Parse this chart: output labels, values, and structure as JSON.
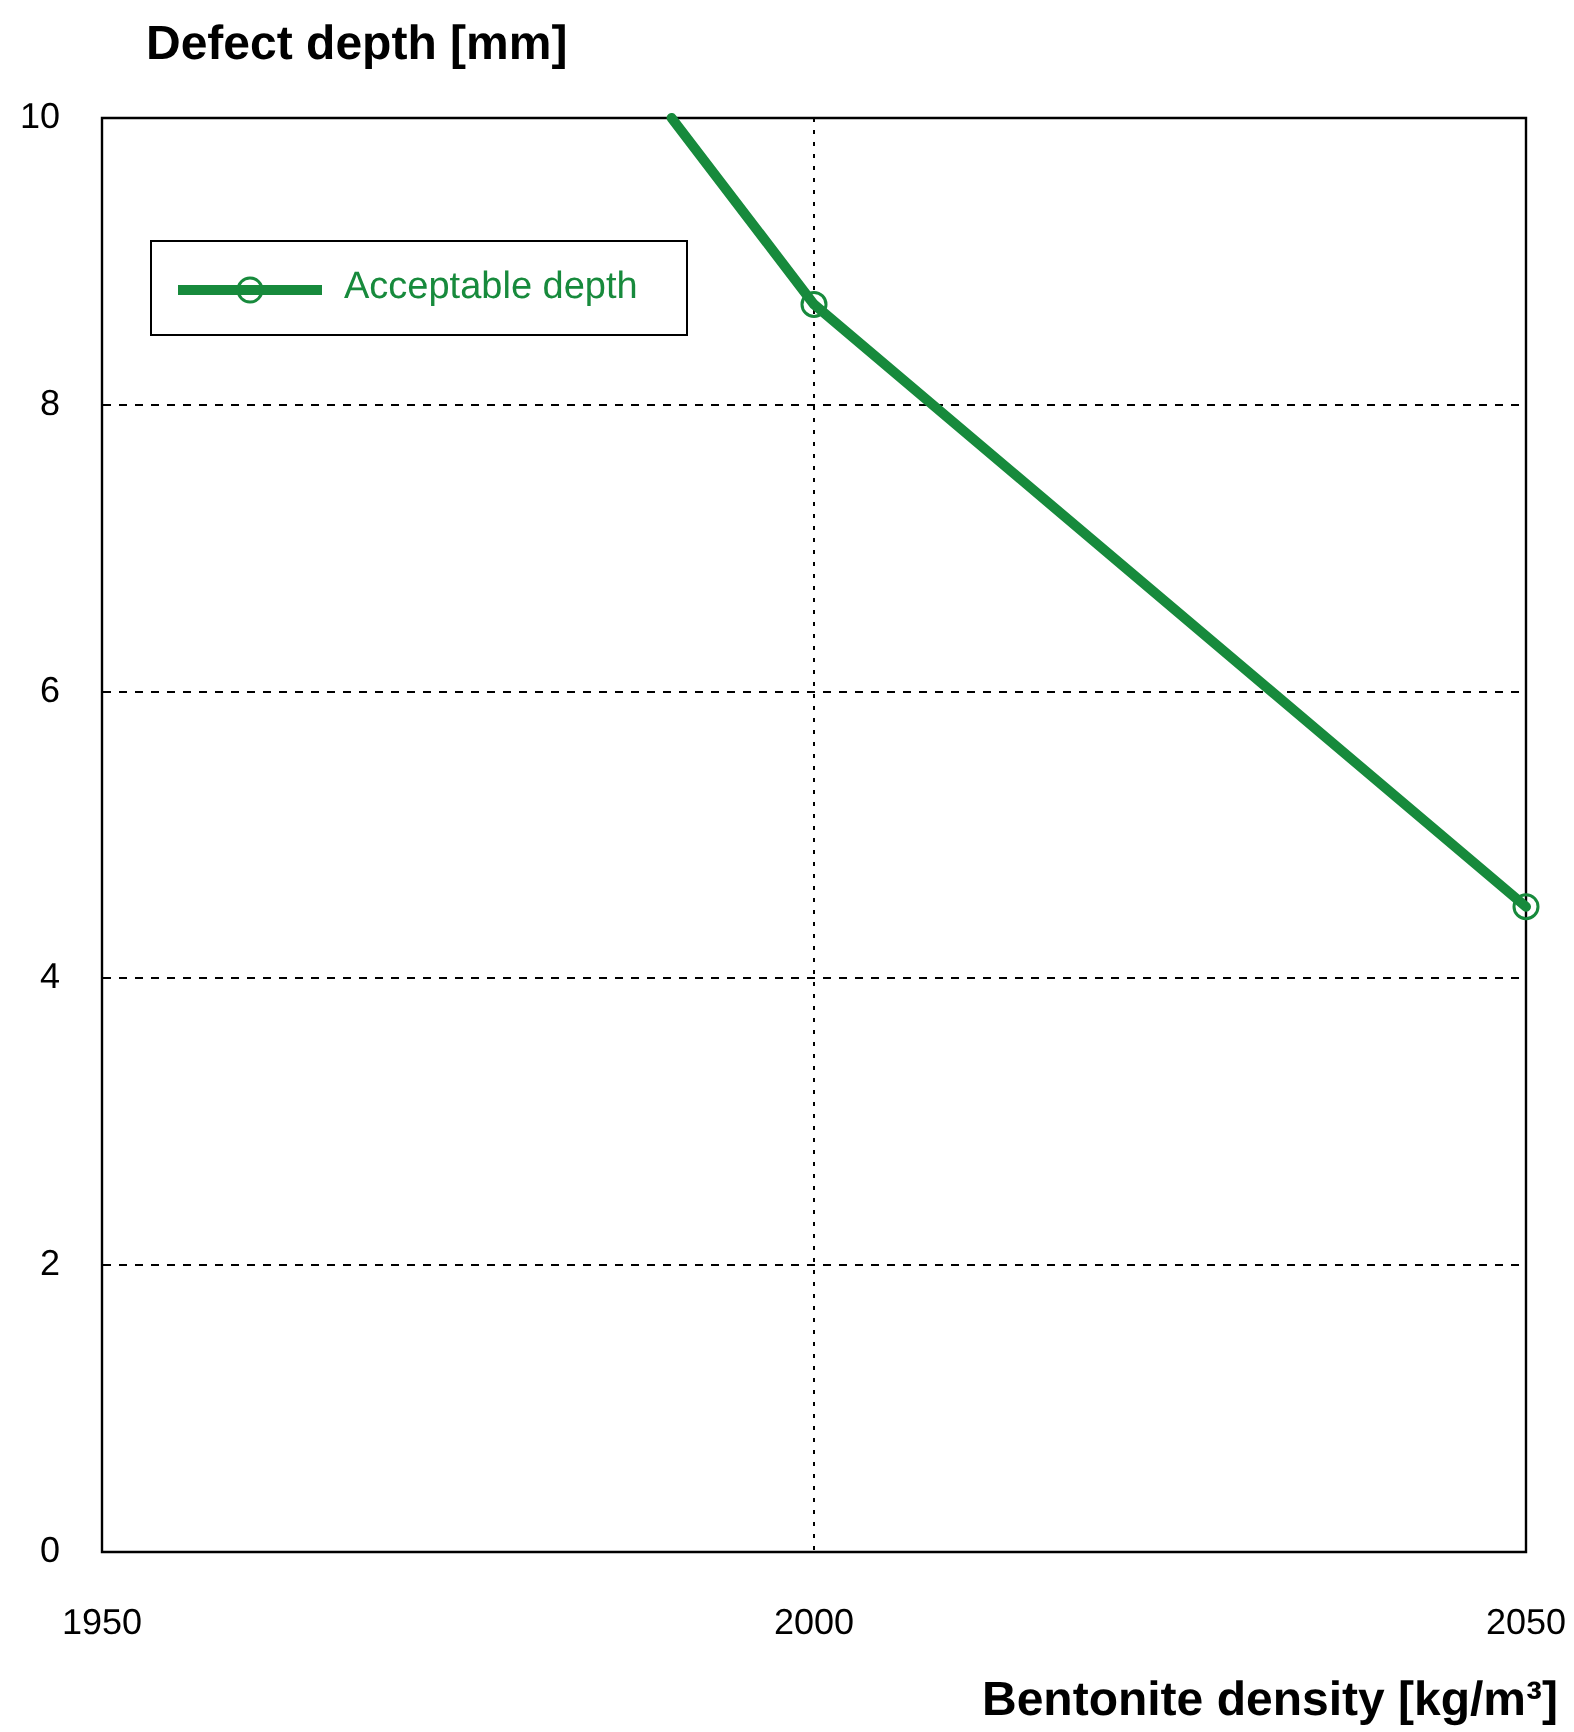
{
  "chart_data": {
    "type": "line",
    "xlabel": "Bentonite density [kg/m³]",
    "ylabel": "Defect depth [mm]",
    "x": [
      1990,
      2000,
      2050
    ],
    "series": [
      {
        "name": "Acceptable depth",
        "color": "#178a3c",
        "values": [
          10,
          8.7,
          4.5
        ]
      }
    ],
    "xlim": [
      1950,
      2050
    ],
    "xticks": [
      1950,
      2000,
      2050
    ],
    "ylim": [
      0,
      10
    ],
    "yticks": [
      0,
      2,
      4,
      6,
      8,
      10
    ],
    "grid": true,
    "legend": "top left",
    "marker": "circle",
    "line_style": "solid"
  }
}
